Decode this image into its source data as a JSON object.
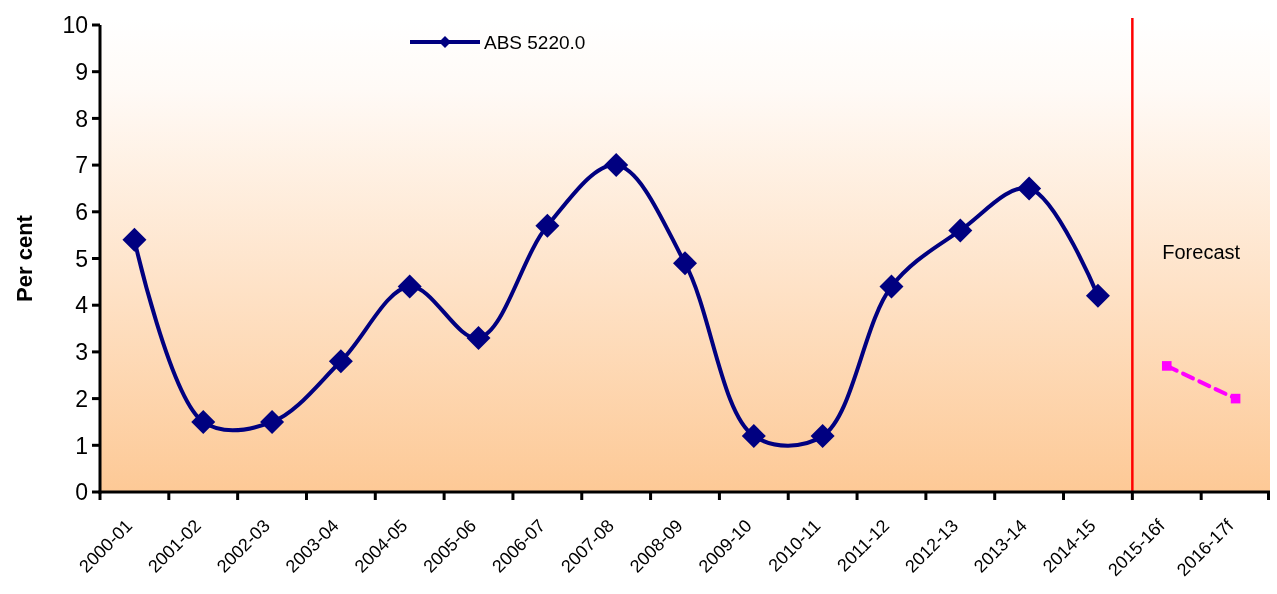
{
  "chart_data": {
    "type": "line",
    "ylabel": "Per cent",
    "categories": [
      "2000-01",
      "2001-02",
      "2002-03",
      "2003-04",
      "2004-05",
      "2005-06",
      "2006-07",
      "2007-08",
      "2008-09",
      "2009-10",
      "2010-11",
      "2011-12",
      "2012-13",
      "2013-14",
      "2014-15",
      "2015-16f",
      "2016-17f"
    ],
    "series": [
      {
        "name": "ABS 5220.0",
        "color": "#000080",
        "marker": "diamond",
        "line_style": "solid",
        "values": [
          5.4,
          1.5,
          1.5,
          2.8,
          4.4,
          3.3,
          5.7,
          7.0,
          4.9,
          1.2,
          1.2,
          4.4,
          5.6,
          6.5,
          4.2,
          null,
          null
        ]
      },
      {
        "color": "#ff00ff",
        "marker": "square",
        "line_style": "dashed",
        "values": [
          null,
          null,
          null,
          null,
          null,
          null,
          null,
          null,
          null,
          null,
          null,
          null,
          null,
          null,
          null,
          2.7,
          2.0
        ]
      }
    ],
    "ylim": [
      0,
      10
    ],
    "yticks": [
      0,
      1,
      2,
      3,
      4,
      5,
      6,
      7,
      8,
      9,
      10
    ],
    "legend": "top",
    "ref_lines": [
      {
        "axis": "x",
        "value": "2015-16f",
        "label": "Forecast",
        "color": "#ff0000"
      }
    ]
  }
}
